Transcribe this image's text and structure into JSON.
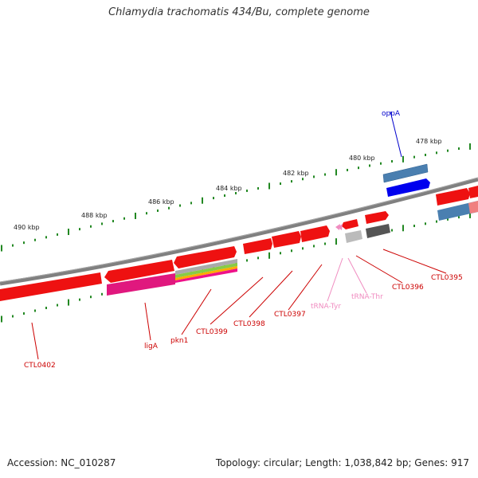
{
  "title": "Chlamydia trachomatis 434/Bu, complete genome",
  "footer": {
    "accession": "Accession: NC_010287",
    "stats": "Topology: circular; Length: 1,038,842 bp; Genes: 917"
  },
  "scale_labels": [
    "478 kbp",
    "480 kbp",
    "482 kbp",
    "484 kbp",
    "486 kbp",
    "488 kbp",
    "490 kbp"
  ],
  "gene_labels": [
    {
      "name": "oppA",
      "color": "#0000cc"
    },
    {
      "name": "CTL0395",
      "color": "#cc0000"
    },
    {
      "name": "CTL0396",
      "color": "#cc0000"
    },
    {
      "name": "tRNA-Thr",
      "color": "#f08cc0"
    },
    {
      "name": "tRNA-Tyr",
      "color": "#f08cc0"
    },
    {
      "name": "CTL0397",
      "color": "#cc0000"
    },
    {
      "name": "CTL0398",
      "color": "#cc0000"
    },
    {
      "name": "CTL0399",
      "color": "#cc0000"
    },
    {
      "name": "pkn1",
      "color": "#cc0000"
    },
    {
      "name": "ligA",
      "color": "#cc0000"
    },
    {
      "name": "CTL0402",
      "color": "#cc0000"
    }
  ],
  "colors": {
    "backbone": "#808080",
    "cds_red": "#ee1111",
    "cds_blue": "#4477aa",
    "ticks": "#228822",
    "trna": "#f08cc0"
  }
}
